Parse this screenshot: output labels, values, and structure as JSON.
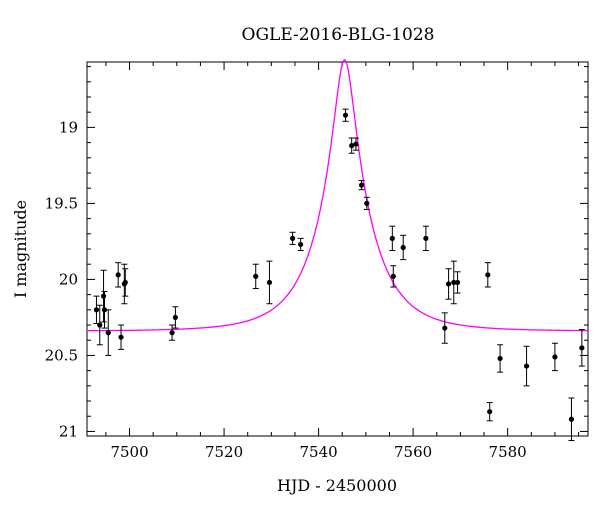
{
  "chart_data": {
    "type": "scatter",
    "title": "OGLE-2016-BLG-1028",
    "xlabel": "HJD - 2450000",
    "ylabel": "I magnitude",
    "xlim": [
      7491,
      7597
    ],
    "ylim": [
      21.03,
      18.57
    ],
    "y_inverted": true,
    "x_ticks": [
      7500,
      7520,
      7540,
      7560,
      7580
    ],
    "x_ticks_labels": [
      "7500",
      "7520",
      "7540",
      "7560",
      "7580"
    ],
    "y_ticks": [
      19,
      19.5,
      20,
      20.5,
      21
    ],
    "y_ticks_labels": [
      "19",
      "19.5",
      "20",
      "20.5",
      "21"
    ],
    "grid": false,
    "colors": {
      "model": "#ff00ff",
      "points": "#000000"
    },
    "model": {
      "t0": 7545.5,
      "tE": 10.5,
      "u0": 0.196,
      "baseline": 20.34
    },
    "points": [
      {
        "x": 7493.0,
        "y": 20.2,
        "err": 0.09
      },
      {
        "x": 7493.7,
        "y": 20.3,
        "err": 0.13
      },
      {
        "x": 7494.5,
        "y": 20.11,
        "err": 0.17
      },
      {
        "x": 7494.7,
        "y": 20.2,
        "err": 0.12
      },
      {
        "x": 7495.5,
        "y": 20.35,
        "err": 0.15
      },
      {
        "x": 7497.6,
        "y": 19.97,
        "err": 0.08
      },
      {
        "x": 7498.2,
        "y": 20.38,
        "err": 0.08
      },
      {
        "x": 7498.9,
        "y": 20.03,
        "err": 0.13
      },
      {
        "x": 7499.1,
        "y": 20.02,
        "err": 0.09
      },
      {
        "x": 7509.0,
        "y": 20.35,
        "err": 0.05
      },
      {
        "x": 7509.7,
        "y": 20.25,
        "err": 0.07
      },
      {
        "x": 7526.7,
        "y": 19.98,
        "err": 0.08
      },
      {
        "x": 7529.6,
        "y": 20.02,
        "err": 0.14
      },
      {
        "x": 7534.5,
        "y": 19.73,
        "err": 0.04
      },
      {
        "x": 7536.2,
        "y": 19.77,
        "err": 0.04
      },
      {
        "x": 7545.7,
        "y": 18.92,
        "err": 0.04
      },
      {
        "x": 7547.0,
        "y": 19.12,
        "err": 0.05
      },
      {
        "x": 7547.9,
        "y": 19.11,
        "err": 0.04
      },
      {
        "x": 7549.1,
        "y": 19.38,
        "err": 0.03
      },
      {
        "x": 7550.2,
        "y": 19.5,
        "err": 0.04
      },
      {
        "x": 7555.6,
        "y": 19.73,
        "err": 0.08
      },
      {
        "x": 7555.8,
        "y": 19.98,
        "err": 0.07
      },
      {
        "x": 7557.9,
        "y": 19.79,
        "err": 0.08
      },
      {
        "x": 7562.7,
        "y": 19.73,
        "err": 0.08
      },
      {
        "x": 7566.7,
        "y": 20.32,
        "err": 0.1
      },
      {
        "x": 7567.5,
        "y": 20.03,
        "err": 0.1
      },
      {
        "x": 7568.6,
        "y": 20.02,
        "err": 0.14
      },
      {
        "x": 7569.4,
        "y": 20.02,
        "err": 0.07
      },
      {
        "x": 7575.8,
        "y": 19.97,
        "err": 0.08
      },
      {
        "x": 7576.2,
        "y": 20.87,
        "err": 0.06
      },
      {
        "x": 7578.4,
        "y": 20.52,
        "err": 0.09
      },
      {
        "x": 7584.0,
        "y": 20.57,
        "err": 0.13
      },
      {
        "x": 7590.0,
        "y": 20.51,
        "err": 0.09
      },
      {
        "x": 7593.5,
        "y": 20.92,
        "err": 0.14
      },
      {
        "x": 7595.7,
        "y": 20.45,
        "err": 0.12
      }
    ]
  }
}
